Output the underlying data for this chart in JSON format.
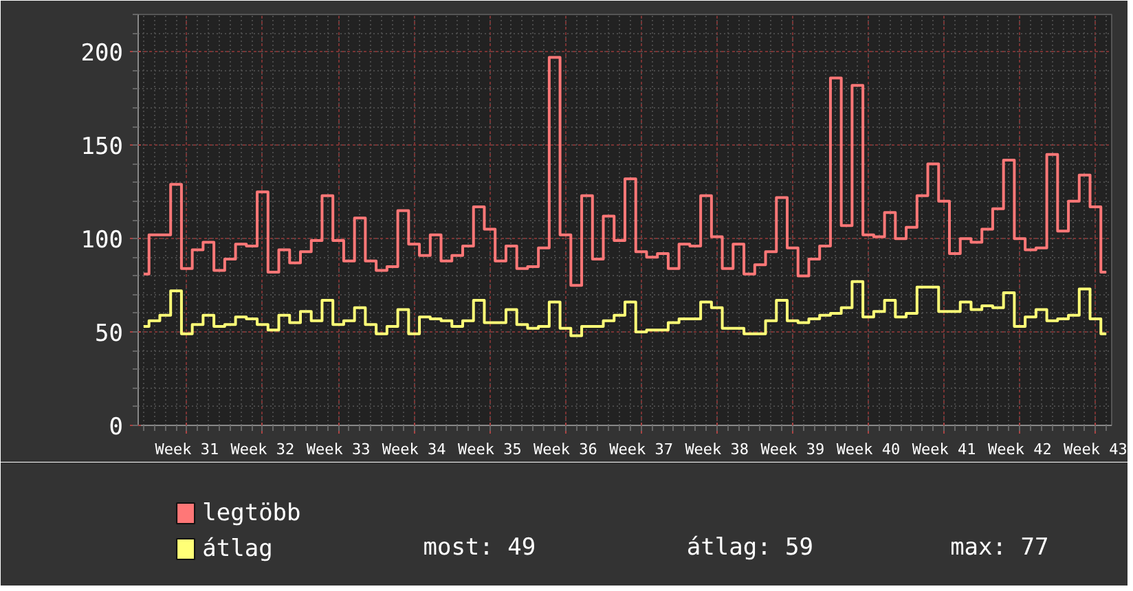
{
  "chart_data": {
    "type": "step",
    "categories": [
      null,
      null,
      null,
      null,
      "Week 31",
      null,
      null,
      null,
      null,
      null,
      null,
      "Week 32",
      null,
      null,
      null,
      null,
      null,
      null,
      "Week 33",
      null,
      null,
      null,
      null,
      null,
      null,
      "Week 34",
      null,
      null,
      null,
      null,
      null,
      null,
      "Week 35",
      null,
      null,
      null,
      null,
      null,
      null,
      "Week 36",
      null,
      null,
      null,
      null,
      null,
      null,
      "Week 37",
      null,
      null,
      null,
      null,
      null,
      null,
      "Week 38",
      null,
      null,
      null,
      null,
      null,
      null,
      "Week 39",
      null,
      null,
      null,
      null,
      null,
      null,
      "Week 40",
      null,
      null,
      null,
      null,
      null,
      null,
      "Week 41",
      null,
      null,
      null,
      null,
      null,
      null,
      "Week 42",
      null,
      null,
      null,
      null,
      null,
      null,
      "Week 43",
      null
    ],
    "series": [
      {
        "name": "legtöbb",
        "color": "#ff7777",
        "values": [
          81,
          102,
          102,
          129,
          84,
          94,
          98,
          83,
          89,
          97,
          96,
          125,
          82,
          94,
          87,
          93,
          99,
          123,
          99,
          88,
          111,
          88,
          83,
          85,
          115,
          97,
          91,
          102,
          88,
          91,
          96,
          117,
          105,
          88,
          96,
          84,
          85,
          95,
          197,
          102,
          75,
          123,
          89,
          112,
          99,
          132,
          93,
          90,
          92,
          84,
          97,
          96,
          123,
          101,
          84,
          97,
          81,
          86,
          93,
          122,
          95,
          80,
          89,
          96,
          186,
          107,
          182,
          102,
          101,
          114,
          100,
          106,
          123,
          140,
          120,
          92,
          100,
          98,
          105,
          116,
          142,
          100,
          94,
          95,
          145,
          104,
          120,
          134,
          117,
          82
        ]
      },
      {
        "name": "átlag",
        "color": "#ffff77",
        "values": [
          53,
          56,
          59,
          72,
          49,
          54,
          59,
          53,
          54,
          58,
          57,
          54,
          51,
          59,
          55,
          61,
          56,
          67,
          54,
          56,
          63,
          54,
          49,
          53,
          62,
          49,
          58,
          57,
          56,
          53,
          56,
          67,
          55,
          55,
          62,
          54,
          52,
          53,
          66,
          52,
          48,
          53,
          53,
          56,
          59,
          66,
          50,
          51,
          51,
          55,
          57,
          57,
          66,
          63,
          52,
          52,
          49,
          49,
          56,
          67,
          56,
          55,
          57,
          59,
          60,
          63,
          77,
          58,
          61,
          67,
          58,
          60,
          74,
          74,
          61,
          61,
          66,
          62,
          64,
          63,
          71,
          53,
          58,
          62,
          56,
          57,
          59,
          73,
          57,
          49
        ]
      }
    ],
    "ylim": [
      0,
      220
    ],
    "yticks": [
      0,
      50,
      100,
      150,
      200
    ],
    "grid": true,
    "legend": "bottom",
    "annotations": [
      "most: 49",
      "átlag: 59",
      "max: 77"
    ]
  }
}
